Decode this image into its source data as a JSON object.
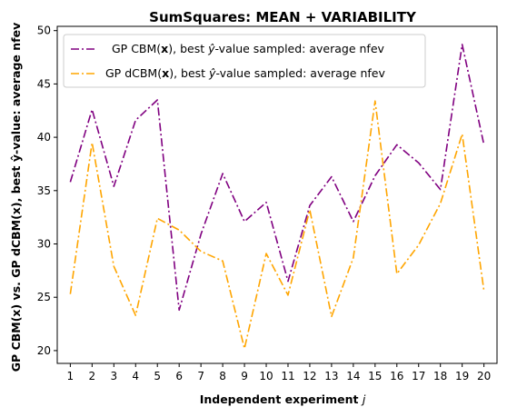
{
  "chart_data": {
    "type": "line",
    "title": "SumSquares: MEAN + VARIABILITY",
    "xlabel_main": "Independent experiment",
    "xlabel_var": "j",
    "ylabel": "GP CBM(x) vs. GP dCBM(x), best ŷ-value: average nfev",
    "x": [
      1,
      2,
      3,
      4,
      5,
      6,
      7,
      8,
      9,
      10,
      11,
      12,
      13,
      14,
      15,
      16,
      17,
      18,
      19,
      20
    ],
    "xlim": [
      0.4,
      20.6
    ],
    "ylim": [
      18.8,
      50.4
    ],
    "yticks": [
      20,
      25,
      30,
      35,
      40,
      45,
      50
    ],
    "grid": false,
    "legend_position": "top-left",
    "series": [
      {
        "name": "GP CBM(x), best ŷ-value sampled: average nfev",
        "label_pre": "GP CBM(",
        "label_bold": "x",
        "label_mid": "), best ",
        "label_hat": "ŷ",
        "label_post": "-value sampled: average nfev",
        "color": "#800080",
        "values": [
          35.8,
          42.6,
          35.4,
          41.6,
          43.5,
          23.8,
          30.9,
          36.6,
          32.1,
          33.9,
          26.5,
          33.6,
          36.3,
          32.1,
          36.4,
          39.3,
          37.6,
          35.1,
          48.7,
          39.3
        ]
      },
      {
        "name": "GP dCBM(x), best ŷ-value sampled: average nfev",
        "label_pre": "GP dCBM(",
        "label_bold": "x",
        "label_mid": "), best ",
        "label_hat": "ŷ",
        "label_post": "-value sampled: average nfev",
        "color": "#ffa500",
        "values": [
          25.3,
          39.5,
          27.9,
          23.3,
          32.4,
          31.3,
          29.3,
          28.4,
          20.2,
          29.1,
          25.2,
          33.2,
          23.2,
          28.7,
          43.4,
          27.2,
          29.9,
          33.8,
          40.3,
          25.6
        ]
      }
    ]
  }
}
